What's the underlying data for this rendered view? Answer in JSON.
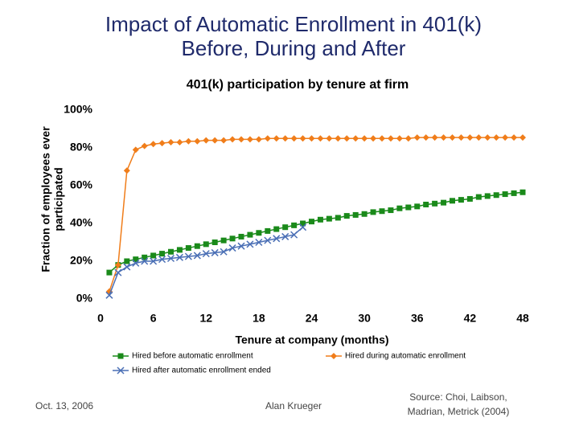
{
  "title_lines": [
    "Impact of Automatic Enrollment in 401(k)",
    "Before, During and After"
  ],
  "footer": {
    "date": "Oct. 13, 2006",
    "author": "Alan Krueger",
    "source_lines": [
      "Source: Choi, Laibson,",
      "Madrian, Metrick (2004)"
    ]
  },
  "chart_data": {
    "type": "line",
    "title": "401(k) participation by tenure at firm",
    "x_label": "Tenure at company (months)",
    "y_label_lines": [
      "Fraction of employees ever",
      "participated"
    ],
    "x": [
      1,
      2,
      3,
      4,
      5,
      6,
      7,
      8,
      9,
      10,
      11,
      12,
      13,
      14,
      15,
      16,
      17,
      18,
      19,
      20,
      21,
      22,
      23,
      24,
      25,
      26,
      27,
      28,
      29,
      30,
      31,
      32,
      33,
      34,
      35,
      36,
      37,
      38,
      39,
      40,
      41,
      42,
      43,
      44,
      45,
      46,
      47,
      48
    ],
    "series": [
      {
        "name": "Hired before automatic enrollment",
        "color": "#1a8a1a",
        "marker": "square",
        "values": [
          14,
          18,
          20,
          21,
          22,
          23,
          24,
          25,
          26,
          27,
          28,
          29,
          30,
          31,
          32,
          33,
          34,
          35,
          36,
          37,
          38,
          39,
          40,
          41,
          42,
          42.5,
          43,
          44,
          44.5,
          45,
          46,
          46.5,
          47,
          48,
          48.5,
          49,
          50,
          50.5,
          51,
          52,
          52.5,
          53,
          54,
          54.5,
          55,
          55.5,
          56,
          56.5
        ]
      },
      {
        "name": "Hired during automatic enrollment",
        "color": "#f07d1a",
        "marker": "diamond",
        "values": [
          4,
          18,
          68,
          79,
          81,
          82,
          82.5,
          83,
          83,
          83.5,
          83.5,
          84,
          84,
          84,
          84.5,
          84.5,
          84.5,
          84.5,
          85,
          85,
          85,
          85,
          85,
          85,
          85,
          85,
          85,
          85,
          85,
          85,
          85,
          85,
          85,
          85,
          85,
          85.5,
          85.5,
          85.5,
          85.5,
          85.5,
          85.5,
          85.5,
          85.5,
          85.5,
          85.5,
          85.5,
          85.5,
          85.5
        ]
      },
      {
        "name": "Hired after automatic enrollment ended",
        "color": "#4a6fb5",
        "marker": "x",
        "values": [
          2,
          14,
          17,
          19,
          20,
          20,
          21,
          21.5,
          22,
          22.5,
          23,
          24,
          24.5,
          25,
          27,
          28,
          29,
          30,
          31,
          32,
          33,
          34,
          38,
          null,
          null,
          null,
          null,
          null,
          null,
          null,
          null,
          null,
          null,
          null,
          null,
          null,
          null,
          null,
          null,
          null,
          null,
          null,
          null,
          null,
          null,
          null,
          null,
          null
        ]
      }
    ],
    "xlim": [
      0,
      48
    ],
    "xticks": [
      0,
      6,
      12,
      18,
      24,
      30,
      36,
      42,
      48
    ],
    "ylim": [
      0,
      100
    ],
    "yticks": [
      {
        "value": 0,
        "label": "0%"
      },
      {
        "value": 20,
        "label": "20%"
      },
      {
        "value": 40,
        "label": "40%"
      },
      {
        "value": 60,
        "label": "60%"
      },
      {
        "value": 80,
        "label": "80%"
      },
      {
        "value": 100,
        "label": "100%"
      }
    ]
  }
}
